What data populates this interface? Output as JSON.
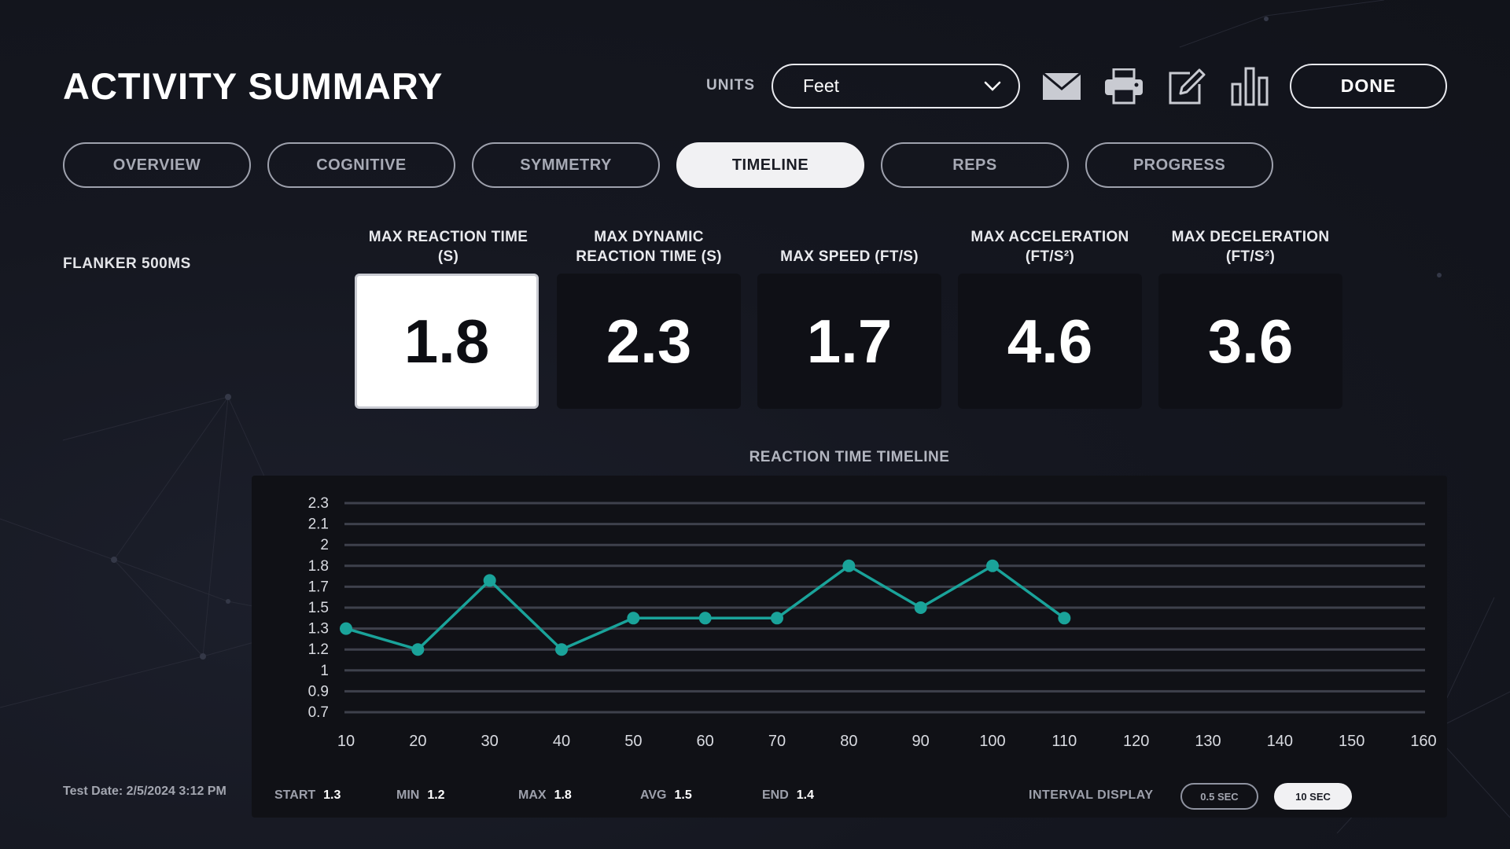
{
  "header": {
    "title": "ACTIVITY SUMMARY",
    "units_label": "UNITS",
    "units_value": "Feet",
    "done_label": "DONE",
    "icons": [
      "envelope-icon",
      "printer-icon",
      "edit-icon",
      "bar-chart-icon"
    ]
  },
  "tabs": [
    {
      "label": "OVERVIEW",
      "active": false
    },
    {
      "label": "COGNITIVE",
      "active": false
    },
    {
      "label": "SYMMETRY",
      "active": false
    },
    {
      "label": "TIMELINE",
      "active": true
    },
    {
      "label": "REPS",
      "active": false
    },
    {
      "label": "PROGRESS",
      "active": false
    }
  ],
  "activity_name": "FLANKER 500MS",
  "metrics": [
    {
      "label_line1": "MAX REACTION TIME",
      "label_line2": "(S)",
      "value": "1.8",
      "selected": true
    },
    {
      "label_line1": "MAX DYNAMIC",
      "label_line2": "REACTION TIME (S)",
      "value": "2.3",
      "selected": false
    },
    {
      "label_line1": "",
      "label_line2": "MAX SPEED (FT/S)",
      "value": "1.7",
      "selected": false
    },
    {
      "label_line1": "MAX ACCELERATION",
      "label_line2": "(FT/S²)",
      "value": "4.6",
      "selected": false
    },
    {
      "label_line1": "MAX DECELERATION",
      "label_line2": "(FT/S²)",
      "value": "3.6",
      "selected": false
    }
  ],
  "chart_title": "REACTION TIME TIMELINE",
  "chart_data": {
    "type": "line",
    "title": "REACTION TIME TIMELINE",
    "xlabel": "",
    "ylabel": "",
    "x_ticks": [
      10,
      20,
      30,
      40,
      50,
      60,
      70,
      80,
      90,
      100,
      110,
      120,
      130,
      140,
      150,
      160
    ],
    "y_ticks": [
      "0.7",
      "0.9",
      "1",
      "1.2",
      "1.3",
      "1.5",
      "1.7",
      "1.8",
      "2",
      "2.1",
      "2.3"
    ],
    "y_tick_values": [
      0.7,
      0.9,
      1.0,
      1.2,
      1.3,
      1.5,
      1.7,
      1.8,
      2.0,
      2.1,
      2.3
    ],
    "grid": true,
    "series": [
      {
        "color": "#1aa39a",
        "x": [
          10,
          20,
          30,
          40,
          50,
          60,
          70,
          80,
          90,
          100,
          110
        ],
        "y": [
          1.3,
          1.2,
          1.73,
          1.2,
          1.4,
          1.4,
          1.4,
          1.8,
          1.5,
          1.8,
          1.4
        ]
      }
    ]
  },
  "test_date": "Test Date: 2/5/2024 3:12 PM",
  "stats": [
    {
      "key": "START",
      "value": "1.3"
    },
    {
      "key": "MIN",
      "value": "1.2"
    },
    {
      "key": "MAX",
      "value": "1.8"
    },
    {
      "key": "AVG",
      "value": "1.5"
    },
    {
      "key": "END",
      "value": "1.4"
    }
  ],
  "interval": {
    "label": "INTERVAL DISPLAY",
    "options": [
      {
        "label": "0.5 SEC",
        "active": false
      },
      {
        "label": "10 SEC",
        "active": true
      }
    ]
  },
  "colors": {
    "accent": "#1aa39a",
    "background": "#151720",
    "card": "#0f1016"
  }
}
